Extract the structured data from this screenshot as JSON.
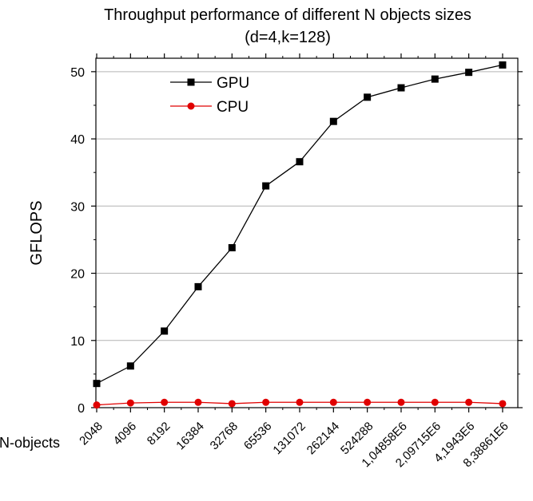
{
  "chart_data": {
    "type": "line",
    "title": "Throughput performance of different N objects sizes",
    "subtitle": "(d=4,k=128)",
    "xlabel": "N-objects",
    "ylabel": "GFLOPS",
    "categories": [
      "2048",
      "4096",
      "8192",
      "16384",
      "32768",
      "65536",
      "131072",
      "262144",
      "524288",
      "1,04858E6",
      "2,09715E6",
      "4,1943E6",
      "8,38861E6"
    ],
    "y_ticks": [
      "0",
      "10",
      "20",
      "30",
      "40",
      "50"
    ],
    "ylim": [
      0,
      52
    ],
    "grid": true,
    "legend_position": "top-left",
    "series": [
      {
        "name": "GPU",
        "color": "#000000",
        "marker": "square",
        "values": [
          3.6,
          6.2,
          11.4,
          18.0,
          23.8,
          33.0,
          36.6,
          42.6,
          46.2,
          47.6,
          48.9,
          49.9,
          51.0
        ]
      },
      {
        "name": "CPU",
        "color": "#e00000",
        "marker": "circle",
        "values": [
          0.4,
          0.7,
          0.8,
          0.8,
          0.6,
          0.8,
          0.8,
          0.8,
          0.8,
          0.8,
          0.8,
          0.8,
          0.6
        ]
      }
    ]
  }
}
